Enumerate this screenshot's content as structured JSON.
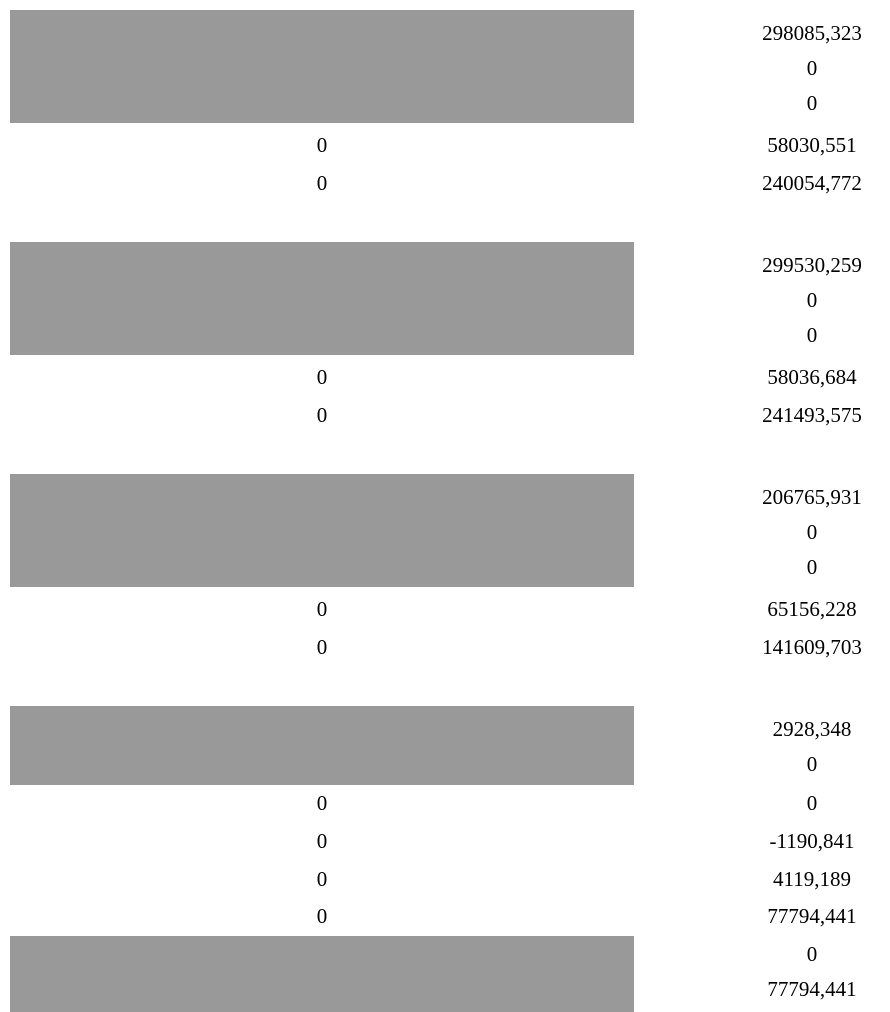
{
  "sheet": {
    "grey_block_color": "#999999",
    "rows": [
      {
        "left": "",
        "right": "298085,323"
      },
      {
        "left": "",
        "right": "0"
      },
      {
        "left": "",
        "right": "0"
      },
      {
        "left": "0",
        "right": "58030,551"
      },
      {
        "left": "0",
        "right": "240054,772"
      },
      {
        "left": "",
        "right": ""
      },
      {
        "left": "",
        "right": "299530,259"
      },
      {
        "left": "",
        "right": "0"
      },
      {
        "left": "",
        "right": "0"
      },
      {
        "left": "0",
        "right": "58036,684"
      },
      {
        "left": "0",
        "right": "241493,575"
      },
      {
        "left": "",
        "right": ""
      },
      {
        "left": "",
        "right": "206765,931"
      },
      {
        "left": "",
        "right": "0"
      },
      {
        "left": "",
        "right": "0"
      },
      {
        "left": "0",
        "right": "65156,228"
      },
      {
        "left": "0",
        "right": "141609,703"
      },
      {
        "left": "",
        "right": ""
      },
      {
        "left": "",
        "right": "2928,348"
      },
      {
        "left": "",
        "right": "0"
      },
      {
        "left": "0",
        "right": "0"
      },
      {
        "left": "0",
        "right": "-1190,841"
      },
      {
        "left": "0",
        "right": "4119,189"
      },
      {
        "left": "0",
        "right": "77794,441"
      },
      {
        "left": "",
        "right": "0"
      },
      {
        "left": "",
        "right": "77794,441"
      }
    ]
  }
}
